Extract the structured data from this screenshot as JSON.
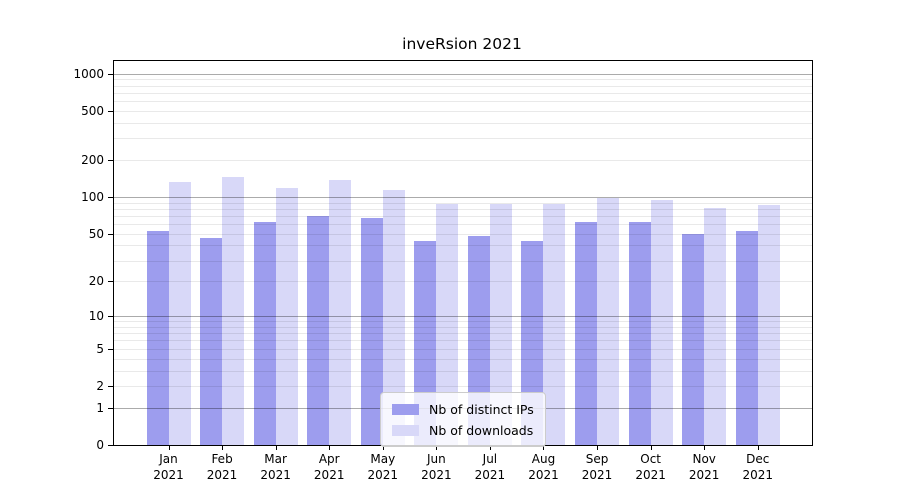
{
  "title": "inveRsion 2021",
  "colors": {
    "distinct_ips": "#9d9dee",
    "downloads": "#d8d8f8",
    "axis": "#000000",
    "grid_major": "#ababab",
    "grid_minor": "#e8e8e8",
    "legend_border": "#cccccc"
  },
  "legend": {
    "items": [
      {
        "label": "Nb of distinct IPs",
        "color_key": "distinct_ips"
      },
      {
        "label": "Nb of downloads",
        "color_key": "downloads"
      }
    ]
  },
  "chart_data": {
    "type": "bar",
    "title": "inveRsion 2021",
    "categories": [
      "Jan 2021",
      "Feb 2021",
      "Mar 2021",
      "Apr 2021",
      "May 2021",
      "Jun 2021",
      "Jul 2021",
      "Aug 2021",
      "Sep 2021",
      "Oct 2021",
      "Nov 2021",
      "Dec 2021"
    ],
    "series": [
      {
        "name": "Nb of distinct IPs",
        "color_key": "distinct_ips",
        "values": [
          53,
          46,
          62,
          70,
          68,
          44,
          48,
          44,
          62,
          62,
          50,
          53
        ]
      },
      {
        "name": "Nb of downloads",
        "color_key": "downloads",
        "values": [
          133,
          147,
          118,
          137,
          114,
          87,
          87,
          87,
          99,
          95,
          81,
          86
        ]
      }
    ],
    "xlabel": "",
    "ylabel": "",
    "yscale": "log1p",
    "ylim": [
      0,
      1270
    ],
    "y_ticks": [
      {
        "label": "0",
        "value": 0
      },
      {
        "label": "1",
        "value": 1
      },
      {
        "label": "2",
        "value": 2
      },
      {
        "label": "5",
        "value": 5
      },
      {
        "label": "10",
        "value": 10
      },
      {
        "label": "20",
        "value": 20
      },
      {
        "label": "50",
        "value": 50
      },
      {
        "label": "100",
        "value": 100
      },
      {
        "label": "200",
        "value": 200
      },
      {
        "label": "500",
        "value": 500
      },
      {
        "label": "1000",
        "value": 1000
      }
    ],
    "grid": "horizontal",
    "grid_minor_values": [
      2,
      3,
      4,
      5,
      6,
      7,
      8,
      9,
      20,
      30,
      40,
      50,
      60,
      70,
      80,
      90,
      200,
      300,
      400,
      500,
      600,
      700,
      800,
      900
    ],
    "grid_major_values": [
      1,
      10,
      100,
      1000
    ],
    "legend_position": "lower center"
  }
}
